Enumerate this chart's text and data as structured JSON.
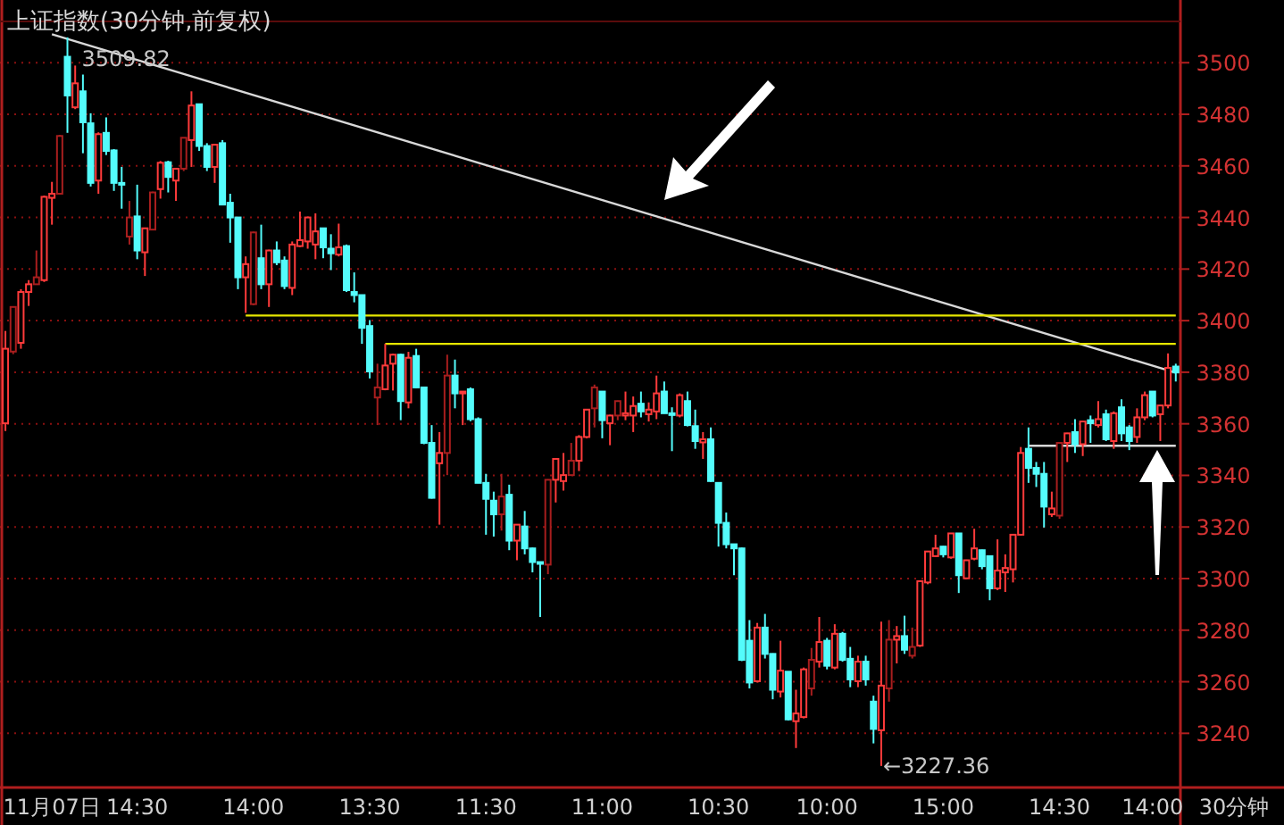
{
  "chart_data": {
    "type": "candlestick",
    "title": "上证指数(30分钟,前复权)",
    "categories": [
      null,
      null,
      null,
      null,
      null,
      null,
      "11月07日",
      null,
      null,
      null,
      null,
      null,
      null,
      null,
      null,
      null,
      null,
      "14:30",
      null,
      null,
      null,
      null,
      null,
      null,
      null,
      null,
      null,
      null,
      null,
      null,
      null,
      null,
      "14:00",
      null,
      null,
      null,
      null,
      null,
      null,
      null,
      null,
      null,
      null,
      null,
      null,
      null,
      null,
      "13:30",
      null,
      null,
      null,
      null,
      null,
      null,
      null,
      null,
      null,
      null,
      null,
      null,
      null,
      null,
      "11:30",
      null,
      null,
      null,
      null,
      null,
      null,
      null,
      null,
      null,
      null,
      null,
      null,
      null,
      null,
      "11:00",
      null,
      null,
      null,
      null,
      null,
      null,
      null,
      null,
      null,
      null,
      null,
      null,
      null,
      null,
      "10:30",
      null,
      null,
      null,
      null,
      null,
      null,
      null,
      null,
      null,
      null,
      null,
      null,
      null,
      "10:00",
      null,
      null,
      null,
      null,
      null,
      null,
      null,
      null,
      null,
      null,
      null,
      null,
      null,
      null,
      "15:00",
      null,
      null,
      null,
      null,
      null,
      null,
      null,
      null,
      null,
      null,
      null,
      null,
      null,
      null,
      "14:30",
      null,
      null,
      null,
      null,
      null,
      null,
      null,
      null,
      null,
      null,
      null,
      "14:00",
      null,
      null,
      null
    ],
    "ohlc": [
      [
        3360.2,
        3396,
        3357.2,
        3389.1
      ],
      [
        3388,
        3405.5,
        3387,
        3405.3
      ],
      [
        3391.4,
        3412.2,
        3389.1,
        3411.1
      ],
      [
        3411.1,
        3415.7,
        3405.7,
        3414.1
      ],
      [
        3414.1,
        3427.2,
        3414,
        3416.8
      ],
      [
        3415.7,
        3448.5,
        3415,
        3448
      ],
      [
        3447.6,
        3453.8,
        3437.2,
        3449.2
      ],
      [
        3449.2,
        3472,
        3449,
        3471.6
      ],
      [
        3502.3,
        3509.82,
        3472.8,
        3487.3
      ],
      [
        3482.7,
        3498.9,
        3482,
        3492
      ],
      [
        3488.9,
        3495.4,
        3464.9,
        3476.9
      ],
      [
        3476.5,
        3480.4,
        3452,
        3453.4
      ],
      [
        3454.3,
        3473,
        3449.2,
        3472.3
      ],
      [
        3472.8,
        3478.8,
        3464.2,
        3465.8
      ],
      [
        3466,
        3466.5,
        3450.3,
        3453.4
      ],
      [
        3453.4,
        3459.6,
        3443.4,
        3452.7
      ],
      [
        3432.6,
        3446.4,
        3429.5,
        3440
      ],
      [
        3440.4,
        3452.7,
        3423.8,
        3427.2
      ],
      [
        3426.5,
        3436,
        3417.3,
        3435.8
      ],
      [
        3435.3,
        3450,
        3435,
        3449.7
      ],
      [
        3451,
        3461.9,
        3447.3,
        3461.2
      ],
      [
        3461.4,
        3462,
        3449.7,
        3455.7
      ],
      [
        3454.3,
        3459,
        3446.4,
        3458.9
      ],
      [
        3458.9,
        3471,
        3458,
        3470.9
      ],
      [
        3470,
        3488.9,
        3459.6,
        3483.4
      ],
      [
        3483.9,
        3484,
        3465.8,
        3467.7
      ],
      [
        3467.7,
        3468.8,
        3458,
        3459.6
      ],
      [
        3459.6,
        3468.5,
        3453.4,
        3468.2
      ],
      [
        3468.8,
        3470,
        3444.8,
        3445
      ],
      [
        3445.7,
        3449.2,
        3430.2,
        3440
      ],
      [
        3440,
        3440.2,
        3412.2,
        3416.8
      ],
      [
        3416.8,
        3424.9,
        3403,
        3421.9
      ],
      [
        3406.4,
        3434.5,
        3406,
        3434.2
      ],
      [
        3424.2,
        3437.2,
        3412.2,
        3414.1
      ],
      [
        3414.1,
        3427.5,
        3405.3,
        3427.2
      ],
      [
        3427.2,
        3430.7,
        3421.5,
        3422.6
      ],
      [
        3423.3,
        3424.9,
        3412.2,
        3413.4
      ],
      [
        3412.7,
        3430.7,
        3409.9,
        3429.5
      ],
      [
        3428.9,
        3442.3,
        3428.5,
        3431.2
      ],
      [
        3430.7,
        3440.3,
        3427.9,
        3440
      ],
      [
        3429.5,
        3441.6,
        3423.8,
        3434.6
      ],
      [
        3435.8,
        3436,
        3424.2,
        3428.4
      ],
      [
        3427.9,
        3433.5,
        3419.6,
        3426.1
      ],
      [
        3425.6,
        3437.6,
        3424.9,
        3428.4
      ],
      [
        3428.9,
        3429.5,
        3411.1,
        3411.8
      ],
      [
        3411.1,
        3418.7,
        3407.1,
        3409.9
      ],
      [
        3409.9,
        3410,
        3391,
        3397.2
      ],
      [
        3397.9,
        3400.2,
        3377.6,
        3380.3
      ],
      [
        3370.2,
        3383.3,
        3359.5,
        3374.1
      ],
      [
        3373.4,
        3391,
        3373,
        3382.6
      ],
      [
        3383.3,
        3387.2,
        3372.9,
        3386.8
      ],
      [
        3386.8,
        3387.2,
        3361.4,
        3368.8
      ],
      [
        3368.3,
        3387.9,
        3366,
        3385.6
      ],
      [
        3386.3,
        3389.1,
        3373.8,
        3374.1
      ],
      [
        3374.1,
        3374.3,
        3352.1,
        3352.6
      ],
      [
        3352.6,
        3359.5,
        3331,
        3331.3
      ],
      [
        3344.7,
        3356.8,
        3320.9,
        3348.7
      ],
      [
        3348.7,
        3386.8,
        3340.1,
        3378.7
      ],
      [
        3378.7,
        3384.9,
        3366,
        3371.8
      ],
      [
        3371.8,
        3372.6,
        3359.5,
        3372.5
      ],
      [
        3373.4,
        3374.1,
        3361,
        3361.8
      ],
      [
        3361.8,
        3362.5,
        3337,
        3337.1
      ],
      [
        3337.1,
        3340.6,
        3317,
        3330.9
      ],
      [
        3330.2,
        3333.7,
        3316.3,
        3324.9
      ],
      [
        3324.9,
        3340.6,
        3318.6,
        3331.8
      ],
      [
        3332.5,
        3336.4,
        3311,
        3314.7
      ],
      [
        3314.7,
        3321,
        3307.1,
        3320.9
      ],
      [
        3320.2,
        3326.2,
        3309.4,
        3311.7
      ],
      [
        3311.7,
        3312,
        3302.4,
        3306.4
      ],
      [
        3306.4,
        3306.5,
        3285.1,
        3305.9
      ],
      [
        3305.4,
        3338.5,
        3301.7,
        3338.3
      ],
      [
        3338.3,
        3346.6,
        3329.5,
        3346.4
      ],
      [
        3337.8,
        3348.7,
        3334.1,
        3340.1
      ],
      [
        3340.1,
        3352.6,
        3340,
        3345.7
      ],
      [
        3345.7,
        3355.6,
        3341.7,
        3354.9
      ],
      [
        3354.9,
        3365.7,
        3354.4,
        3365.5
      ],
      [
        3366,
        3375.2,
        3358.6,
        3374.1
      ],
      [
        3372.5,
        3372.6,
        3354.4,
        3361.4
      ],
      [
        3360.2,
        3363.5,
        3351.7,
        3363.2
      ],
      [
        3363.2,
        3369,
        3361.4,
        3368.8
      ],
      [
        3363.2,
        3372.5,
        3361.4,
        3364.1
      ],
      [
        3363.2,
        3370.6,
        3356.8,
        3366.9
      ],
      [
        3367.8,
        3372.5,
        3362.5,
        3364.8
      ],
      [
        3363.7,
        3368.3,
        3360.9,
        3365.5
      ],
      [
        3364.8,
        3378.7,
        3361.8,
        3371.8
      ],
      [
        3372.5,
        3376.4,
        3364,
        3364.1
      ],
      [
        3364.1,
        3366.4,
        3349.4,
        3363.7
      ],
      [
        3363.2,
        3371.8,
        3362.5,
        3371.1
      ],
      [
        3368.8,
        3372.5,
        3359,
        3359.5
      ],
      [
        3359.1,
        3365.5,
        3350.3,
        3353.3
      ],
      [
        3352.8,
        3356.8,
        3346.4,
        3354
      ],
      [
        3354,
        3358.6,
        3337.5,
        3337.8
      ],
      [
        3337.1,
        3337.3,
        3312.4,
        3321.6
      ],
      [
        3321.6,
        3325.6,
        3311.7,
        3313.3
      ],
      [
        3313.3,
        3313.5,
        3301.3,
        3311.7
      ],
      [
        3311.7,
        3312,
        3268,
        3268.5
      ],
      [
        3275.9,
        3283.9,
        3257.4,
        3259.7
      ],
      [
        3260.2,
        3282.8,
        3259.7,
        3281
      ],
      [
        3281,
        3286.3,
        3269,
        3270.8
      ],
      [
        3270.8,
        3271,
        3253.2,
        3256.9
      ],
      [
        3256.2,
        3275.9,
        3253.9,
        3264.3
      ],
      [
        3263.9,
        3264,
        3245,
        3245.4
      ],
      [
        3244.7,
        3256.9,
        3234.3,
        3247.7
      ],
      [
        3246.3,
        3265.5,
        3245.8,
        3264.8
      ],
      [
        3257.4,
        3273.1,
        3254.6,
        3268.5
      ],
      [
        3267.8,
        3285.1,
        3265.5,
        3275.4
      ],
      [
        3275.9,
        3277,
        3264.8,
        3266.2
      ],
      [
        3265.5,
        3282.3,
        3264.8,
        3278.6
      ],
      [
        3278.6,
        3279.3,
        3267.8,
        3268.5
      ],
      [
        3268.9,
        3273.5,
        3257.9,
        3260.9
      ],
      [
        3260.2,
        3270.1,
        3257.9,
        3267.8
      ],
      [
        3267.8,
        3270.1,
        3258.5,
        3260.9
      ],
      [
        3252.3,
        3254.6,
        3236.1,
        3241.7
      ],
      [
        3241.2,
        3283.3,
        3227.36,
        3258.5
      ],
      [
        3257.4,
        3283.9,
        3252.3,
        3276.3
      ],
      [
        3276.3,
        3281.6,
        3267.1,
        3277.7
      ],
      [
        3277.7,
        3285.6,
        3270.8,
        3272.4
      ],
      [
        3270.1,
        3281,
        3269,
        3273.5
      ],
      [
        3274,
        3299.2,
        3273.5,
        3299
      ],
      [
        3298.5,
        3310.7,
        3297.8,
        3310.5
      ],
      [
        3308.7,
        3317,
        3308.5,
        3311.7
      ],
      [
        3312.4,
        3312.6,
        3308.2,
        3309.4
      ],
      [
        3308.2,
        3317.6,
        3307.7,
        3317.5
      ],
      [
        3317.5,
        3317.6,
        3294.4,
        3301.3
      ],
      [
        3300.1,
        3307.3,
        3299.8,
        3307.1
      ],
      [
        3307.7,
        3319.3,
        3307.1,
        3311.7
      ],
      [
        3311,
        3311.2,
        3303.6,
        3304.8
      ],
      [
        3308.7,
        3308.9,
        3291.6,
        3296.2
      ],
      [
        3296.2,
        3315.2,
        3295.5,
        3303.1
      ],
      [
        3302.4,
        3309.4,
        3294.8,
        3304.1
      ],
      [
        3303.6,
        3317.2,
        3298.5,
        3317
      ],
      [
        3317,
        3351,
        3316.8,
        3348.7
      ],
      [
        3350.3,
        3358.6,
        3337.1,
        3342.9
      ],
      [
        3342.9,
        3345.2,
        3335.5,
        3340.6
      ],
      [
        3340.6,
        3345.2,
        3319.8,
        3327.9
      ],
      [
        3324.9,
        3333.7,
        3323.9,
        3327.2
      ],
      [
        3324.4,
        3352.8,
        3323.2,
        3352.6
      ],
      [
        3352.6,
        3356.5,
        3345.2,
        3356.3
      ],
      [
        3356.8,
        3361.8,
        3348.7,
        3352.1
      ],
      [
        3352.1,
        3361.1,
        3347.5,
        3360.9
      ],
      [
        3361.4,
        3363.2,
        3352.6,
        3360.2
      ],
      [
        3359.5,
        3368.8,
        3358.6,
        3361.8
      ],
      [
        3363.7,
        3365.5,
        3353.3,
        3354
      ],
      [
        3353.3,
        3364.8,
        3350.3,
        3364.1
      ],
      [
        3366.4,
        3369.5,
        3353.3,
        3356.3
      ],
      [
        3358.6,
        3359.5,
        3349.8,
        3353.3
      ],
      [
        3354.9,
        3366,
        3352.6,
        3362.5
      ],
      [
        3362.5,
        3372.5,
        3361.4,
        3371.1
      ],
      [
        3372.5,
        3372.6,
        3362.5,
        3363.2
      ],
      [
        3363.7,
        3367.3,
        3353.3,
        3367.1
      ],
      [
        3367.1,
        3387.3,
        3366,
        3381.7
      ],
      [
        3382.2,
        3383.3,
        3376.4,
        3379.9
      ]
    ],
    "colors": [
      "#ff3b3b",
      "#a81e1e",
      "#ff3b3b",
      "#ff3b3b",
      "#a81e1e",
      "#ff3b3b",
      "#ff3b3b",
      "#a81e1e",
      "#54fcfc",
      "#ff3b3b",
      "#54fcfc",
      "#54fcfc",
      "#ff3b3b",
      "#54fcfc",
      "#54fcfc",
      "#54fcfc",
      "#a81e1e",
      "#54fcfc",
      "#ff3b3b",
      "#a81e1e",
      "#ff3b3b",
      "#54fcfc",
      "#ff3b3b",
      "#a81e1e",
      "#ff3b3b",
      "#54fcfc",
      "#54fcfc",
      "#ff3b3b",
      "#54fcfc",
      "#54fcfc",
      "#54fcfc",
      "#ff3b3b",
      "#a81e1e",
      "#54fcfc",
      "#ff3b3b",
      "#54fcfc",
      "#54fcfc",
      "#ff3b3b",
      "#ff3b3b",
      "#ff3b3b",
      "#ff3b3b",
      "#54fcfc",
      "#54fcfc",
      "#ff3b3b",
      "#54fcfc",
      "#54fcfc",
      "#54fcfc",
      "#54fcfc",
      "#a81e1e",
      "#ff3b3b",
      "#ff3b3b",
      "#54fcfc",
      "#ff3b3b",
      "#54fcfc",
      "#54fcfc",
      "#54fcfc",
      "#ff3b3b",
      "#a81e1e",
      "#54fcfc",
      "#ff3b3b",
      "#54fcfc",
      "#54fcfc",
      "#54fcfc",
      "#54fcfc",
      "#a81e1e",
      "#54fcfc",
      "#ff3b3b",
      "#54fcfc",
      "#54fcfc",
      "#54fcfc",
      "#a81e1e",
      "#ff3b3b",
      "#ff3b3b",
      "#a81e1e",
      "#ff3b3b",
      "#ff3b3b",
      "#a81e1e",
      "#54fcfc",
      "#ff3b3b",
      "#a81e1e",
      "#ff3b3b",
      "#ff3b3b",
      "#54fcfc",
      "#ff3b3b",
      "#ff3b3b",
      "#54fcfc",
      "#54fcfc",
      "#ff3b3b",
      "#54fcfc",
      "#54fcfc",
      "#ff3b3b",
      "#54fcfc",
      "#54fcfc",
      "#54fcfc",
      "#54fcfc",
      "#54fcfc",
      "#54fcfc",
      "#ff3b3b",
      "#54fcfc",
      "#54fcfc",
      "#ff3b3b",
      "#54fcfc",
      "#ff3b3b",
      "#ff3b3b",
      "#a81e1e",
      "#ff3b3b",
      "#54fcfc",
      "#ff3b3b",
      "#54fcfc",
      "#54fcfc",
      "#ff3b3b",
      "#54fcfc",
      "#54fcfc",
      "#ff3b3b",
      "#a81e1e",
      "#ff3b3b",
      "#54fcfc",
      "#a81e1e",
      "#ff3b3b",
      "#ff3b3b",
      "#ff3b3b",
      "#54fcfc",
      "#ff3b3b",
      "#54fcfc",
      "#ff3b3b",
      "#ff3b3b",
      "#54fcfc",
      "#54fcfc",
      "#ff3b3b",
      "#ff3b3b",
      "#ff3b3b",
      "#ff3b3b",
      "#54fcfc",
      "#54fcfc",
      "#54fcfc",
      "#ff3b3b",
      "#a81e1e",
      "#ff3b3b",
      "#54fcfc",
      "#ff3b3b",
      "#54fcfc",
      "#ff3b3b",
      "#54fcfc",
      "#ff3b3b",
      "#54fcfc",
      "#54fcfc",
      "#ff3b3b",
      "#ff3b3b",
      "#54fcfc",
      "#ff3b3b",
      "#ff3b3b",
      "#54fcfc"
    ],
    "series": [
      {
        "type": "line",
        "color": "#d8d8d8",
        "values": [
          null,
          null,
          null,
          null,
          null,
          null,
          3511,
          null,
          null,
          null,
          null,
          null,
          null,
          null,
          null,
          null,
          null,
          null,
          null,
          null,
          null,
          null,
          null,
          null,
          null,
          null,
          null,
          null,
          null,
          null,
          null,
          null,
          null,
          null,
          null,
          null,
          null,
          null,
          null,
          null,
          null,
          null,
          null,
          null,
          null,
          null,
          null,
          null,
          null,
          null,
          null,
          null,
          null,
          null,
          null,
          null,
          null,
          null,
          null,
          null,
          null,
          null,
          null,
          null,
          null,
          null,
          null,
          null,
          null,
          null,
          null,
          null,
          null,
          null,
          null,
          null,
          null,
          null,
          null,
          null,
          null,
          null,
          null,
          null,
          null,
          null,
          null,
          null,
          null,
          null,
          null,
          null,
          null,
          null,
          null,
          null,
          null,
          null,
          null,
          null,
          null,
          null,
          null,
          null,
          null,
          null,
          null,
          null,
          null,
          null,
          null,
          null,
          null,
          null,
          null,
          null,
          null,
          null,
          null,
          null,
          null,
          null,
          null,
          null,
          null,
          null,
          null,
          null,
          null,
          null,
          null,
          null,
          null,
          null,
          null,
          null,
          null,
          null,
          null,
          null,
          null,
          null,
          null,
          null,
          null,
          null,
          null,
          null,
          null,
          null,
          null,
          3379.8
        ]
      },
      {
        "type": "line",
        "color": "#e6e600",
        "values": [
          null,
          null,
          null,
          null,
          null,
          null,
          null,
          null,
          null,
          null,
          null,
          null,
          null,
          null,
          null,
          null,
          null,
          null,
          null,
          null,
          null,
          null,
          null,
          null,
          null,
          null,
          null,
          null,
          null,
          null,
          null,
          3402,
          null,
          null,
          null,
          null,
          null,
          null,
          null,
          null,
          null,
          null,
          null,
          null,
          null,
          null,
          null,
          null,
          null,
          null,
          null,
          null,
          null,
          null,
          null,
          null,
          null,
          null,
          null,
          null,
          null,
          null,
          null,
          null,
          null,
          null,
          null,
          null,
          null,
          null,
          null,
          null,
          null,
          null,
          null,
          null,
          null,
          null,
          null,
          null,
          null,
          null,
          null,
          null,
          null,
          null,
          null,
          null,
          null,
          null,
          null,
          null,
          null,
          null,
          null,
          null,
          null,
          null,
          null,
          null,
          null,
          null,
          null,
          null,
          null,
          null,
          null,
          null,
          null,
          null,
          null,
          null,
          null,
          null,
          null,
          null,
          null,
          null,
          null,
          null,
          null,
          null,
          null,
          null,
          null,
          null,
          null,
          null,
          null,
          null,
          null,
          null,
          null,
          null,
          null,
          null,
          null,
          null,
          null,
          null,
          null,
          null,
          null,
          null,
          null,
          null,
          null,
          null,
          null,
          null,
          null,
          3402
        ]
      },
      {
        "type": "line",
        "color": "#e6e600",
        "values": [
          null,
          null,
          null,
          null,
          null,
          null,
          null,
          null,
          null,
          null,
          null,
          null,
          null,
          null,
          null,
          null,
          null,
          null,
          null,
          null,
          null,
          null,
          null,
          null,
          null,
          null,
          null,
          null,
          null,
          null,
          null,
          null,
          null,
          null,
          null,
          null,
          null,
          null,
          null,
          null,
          null,
          null,
          null,
          null,
          null,
          null,
          null,
          null,
          null,
          3391,
          null,
          null,
          null,
          null,
          null,
          null,
          null,
          null,
          null,
          null,
          null,
          null,
          null,
          null,
          null,
          null,
          null,
          null,
          null,
          null,
          null,
          null,
          null,
          null,
          null,
          null,
          null,
          null,
          null,
          null,
          null,
          null,
          null,
          null,
          null,
          null,
          null,
          null,
          null,
          null,
          null,
          null,
          null,
          null,
          null,
          null,
          null,
          null,
          null,
          null,
          null,
          null,
          null,
          null,
          null,
          null,
          null,
          null,
          null,
          null,
          null,
          null,
          null,
          null,
          null,
          null,
          null,
          null,
          null,
          null,
          null,
          null,
          null,
          null,
          null,
          null,
          null,
          null,
          null,
          null,
          null,
          null,
          null,
          null,
          null,
          null,
          null,
          null,
          null,
          null,
          null,
          null,
          null,
          null,
          null,
          null,
          null,
          null,
          null,
          null,
          null,
          3391
        ]
      },
      {
        "type": "line",
        "color": "#d8d8d8",
        "values": [
          null,
          null,
          null,
          null,
          null,
          null,
          null,
          null,
          null,
          null,
          null,
          null,
          null,
          null,
          null,
          null,
          null,
          null,
          null,
          null,
          null,
          null,
          null,
          null,
          null,
          null,
          null,
          null,
          null,
          null,
          null,
          null,
          null,
          null,
          null,
          null,
          null,
          null,
          null,
          null,
          null,
          null,
          null,
          null,
          null,
          null,
          null,
          null,
          null,
          null,
          null,
          null,
          null,
          null,
          null,
          null,
          null,
          null,
          null,
          null,
          null,
          null,
          null,
          null,
          null,
          null,
          null,
          null,
          null,
          null,
          null,
          null,
          null,
          null,
          null,
          null,
          null,
          null,
          null,
          null,
          null,
          null,
          null,
          null,
          null,
          null,
          null,
          null,
          null,
          null,
          null,
          null,
          null,
          null,
          null,
          null,
          null,
          null,
          null,
          null,
          null,
          null,
          null,
          null,
          null,
          null,
          null,
          null,
          null,
          null,
          null,
          null,
          null,
          null,
          null,
          null,
          null,
          null,
          null,
          null,
          null,
          null,
          null,
          null,
          null,
          null,
          null,
          null,
          null,
          null,
          null,
          null,
          3351.5,
          null,
          null,
          null,
          null,
          null,
          null,
          null,
          null,
          null,
          null,
          null,
          null,
          null,
          null,
          null,
          null,
          null,
          null,
          3351.5
        ]
      }
    ],
    "ylim": [
      3219,
      3516
    ],
    "yticks": [
      3240,
      3260,
      3280,
      3300,
      3320,
      3340,
      3360,
      3380,
      3400,
      3420,
      3440,
      3460,
      3480,
      3500
    ],
    "grid": "y",
    "annotations": [
      "3509.82",
      "←3227.36",
      "30分钟"
    ]
  }
}
